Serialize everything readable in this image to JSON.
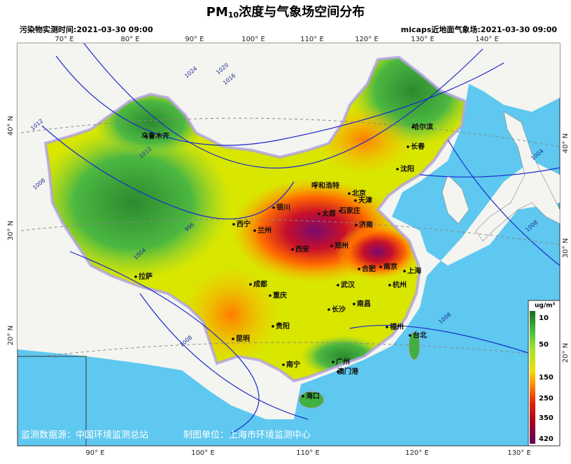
{
  "header": {
    "title_prefix": "PM",
    "title_subscript": "10",
    "title_rest": "浓度与气象场空间分布",
    "left_subtitle": "污染物实测时间:2021-03-30 09:00",
    "right_subtitle": "micaps近地面气象场:2021-03-30 09:00"
  },
  "axes": {
    "top_longitudes": [
      "70° E",
      "80° E",
      "90° E",
      "100° E",
      "110° E",
      "120° E",
      "130° E",
      "140° E"
    ],
    "bottom_longitudes": [
      "90° E",
      "100° E",
      "110° E",
      "120° E",
      "130° E"
    ],
    "left_latitudes": [
      "40° N",
      "30° N",
      "20° N"
    ],
    "right_latitudes": [
      "40° N",
      "30° N",
      "20° N"
    ]
  },
  "cities": [
    "乌鲁木齐",
    "哈尔滨",
    "长春",
    "沈阳",
    "呼和浩特",
    "北京",
    "天津",
    "银川",
    "太原",
    "石家庄",
    "西宁",
    "兰州",
    "济南",
    "西安",
    "郑州",
    "合肥",
    "南京",
    "上海",
    "拉萨",
    "成都",
    "武汉",
    "杭州",
    "重庆",
    "南昌",
    "长沙",
    "贵阳",
    "福州",
    "台北",
    "昆明",
    "南宁",
    "广州",
    "澳门港",
    "海口"
  ],
  "isobar_labels": [
    "1012",
    "1008",
    "1012",
    "996",
    "1004",
    "1016",
    "1020",
    "1024",
    "1004",
    "1008",
    "1008",
    "1008"
  ],
  "legend": {
    "unit": "ug/m³",
    "labels": [
      "10",
      "50",
      "150",
      "250",
      "350",
      "420"
    ]
  },
  "footer": {
    "source": "监测数据源：中国环境监测总站",
    "producer": "制图单位：上海市环境监测中心"
  }
}
